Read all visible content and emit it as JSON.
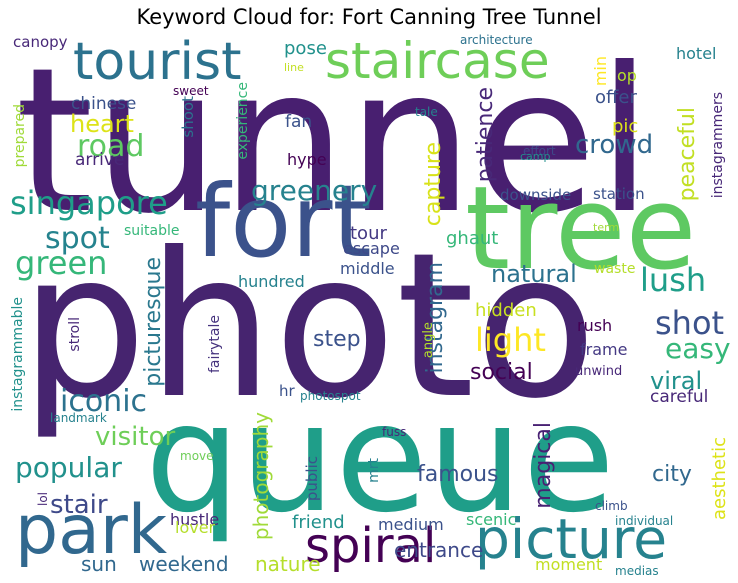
{
  "title": "Keyword Cloud for: Fort Canning Tree Tunnel",
  "palette": {
    "dark_purple": "#440154",
    "purple": "#482677",
    "indigo": "#3e4a89",
    "blue": "#31688e",
    "teal": "#26828e",
    "green_teal": "#1f9e89",
    "green": "#35b779",
    "light_green": "#6ece58",
    "yellow_green": "#b5de2b",
    "yellow": "#fde725"
  },
  "words": [
    {
      "text": "tunnel",
      "color": "#481f70"
    },
    {
      "text": "photo",
      "color": "#46246f"
    },
    {
      "text": "queue",
      "color": "#1f9e89"
    },
    {
      "text": "tree",
      "color": "#5ec962"
    },
    {
      "text": "fort",
      "color": "#3b528b"
    },
    {
      "text": "park",
      "color": "#31688e"
    },
    {
      "text": "picture",
      "color": "#26828e"
    },
    {
      "text": "spiral",
      "color": "#440154"
    },
    {
      "text": "staircase",
      "color": "#6ece58"
    },
    {
      "text": "tourist",
      "color": "#2c728e"
    },
    {
      "text": "singapore",
      "color": "#1f9e89"
    },
    {
      "text": "greenery",
      "color": "#26828e"
    },
    {
      "text": "green",
      "color": "#35b779"
    },
    {
      "text": "spot",
      "color": "#25838e"
    },
    {
      "text": "popular",
      "color": "#21918c"
    },
    {
      "text": "iconic",
      "color": "#2c728e"
    },
    {
      "text": "lush",
      "color": "#1f9e89"
    },
    {
      "text": "shot",
      "color": "#3b528b"
    },
    {
      "text": "light",
      "color": "#fde725"
    },
    {
      "text": "easy",
      "color": "#35b779"
    },
    {
      "text": "viral",
      "color": "#21918c"
    },
    {
      "text": "crowd",
      "color": "#31688e"
    },
    {
      "text": "road",
      "color": "#5ec962"
    },
    {
      "text": "heart",
      "color": "#dde318"
    },
    {
      "text": "natural",
      "color": "#2c728e"
    },
    {
      "text": "stair",
      "color": "#3e4989"
    },
    {
      "text": "famous",
      "color": "#3b528b"
    },
    {
      "text": "city",
      "color": "#31688e"
    },
    {
      "text": "visitor",
      "color": "#6ece58"
    },
    {
      "text": "social",
      "color": "#440154"
    },
    {
      "text": "step",
      "color": "#3b528b"
    },
    {
      "text": "picturesque",
      "color": "#2a788e"
    },
    {
      "text": "instagram",
      "color": "#31688e"
    },
    {
      "text": "patience",
      "color": "#482878"
    },
    {
      "text": "capture",
      "color": "#d8e219"
    },
    {
      "text": "peaceful",
      "color": "#c2df23"
    },
    {
      "text": "magical",
      "color": "#482173"
    },
    {
      "text": "photography",
      "color": "#a0da39"
    },
    {
      "text": "aesthetic",
      "color": "#dde318"
    },
    {
      "text": "entrance",
      "color": "#3e4989"
    },
    {
      "text": "weekend",
      "color": "#31688e"
    },
    {
      "text": "nature",
      "color": "#b5de2b"
    },
    {
      "text": "sun",
      "color": "#31688e"
    },
    {
      "text": "friend",
      "color": "#21918c"
    },
    {
      "text": "medium",
      "color": "#3b528b"
    },
    {
      "text": "scenic",
      "color": "#35b779"
    },
    {
      "text": "hustle",
      "color": "#482878"
    },
    {
      "text": "lover",
      "color": "#b5de2b"
    },
    {
      "text": "moment",
      "color": "#c2df23"
    },
    {
      "text": "hidden",
      "color": "#c8e020"
    },
    {
      "text": "rush",
      "color": "#440154"
    },
    {
      "text": "frame",
      "color": "#443983"
    },
    {
      "text": "careful",
      "color": "#482878"
    },
    {
      "text": "ghaut",
      "color": "#35b779"
    },
    {
      "text": "waste",
      "color": "#b5de2b"
    },
    {
      "text": "tour",
      "color": "#443983"
    },
    {
      "text": "escape",
      "color": "#3e4989"
    },
    {
      "text": "middle",
      "color": "#3b528b"
    },
    {
      "text": "hundred",
      "color": "#26828e"
    },
    {
      "text": "suitable",
      "color": "#35b779"
    },
    {
      "text": "downside",
      "color": "#3b528b"
    },
    {
      "text": "station",
      "color": "#3b528b"
    },
    {
      "text": "offer",
      "color": "#3b528b"
    },
    {
      "text": "pic",
      "color": "#dde318"
    },
    {
      "text": "pose",
      "color": "#21918c"
    },
    {
      "text": "min",
      "color": "#fde725"
    },
    {
      "text": "op",
      "color": "#b5de2b"
    },
    {
      "text": "hotel",
      "color": "#26828e"
    },
    {
      "text": "chinese",
      "color": "#3b528b"
    },
    {
      "text": "arrive",
      "color": "#482878"
    },
    {
      "text": "fan",
      "color": "#3b528b"
    },
    {
      "text": "hype",
      "color": "#440154"
    },
    {
      "text": "shoot",
      "color": "#2c728e"
    },
    {
      "text": "experience",
      "color": "#35b779"
    },
    {
      "text": "sweet",
      "color": "#440154"
    },
    {
      "text": "tale",
      "color": "#26828e"
    },
    {
      "text": "effort",
      "color": "#3e4989"
    },
    {
      "text": "camp",
      "color": "#21918c"
    },
    {
      "text": "term",
      "color": "#a0da39"
    },
    {
      "text": "canopy",
      "color": "#482878"
    },
    {
      "text": "architecture",
      "color": "#2c728e"
    },
    {
      "text": "line",
      "color": "#c2df23"
    },
    {
      "text": "prepared",
      "color": "#a0da39"
    },
    {
      "text": "instagrammers",
      "color": "#482878"
    },
    {
      "text": "instagrammable",
      "color": "#21918c"
    },
    {
      "text": "stroll",
      "color": "#482878"
    },
    {
      "text": "fairytale",
      "color": "#46337e"
    },
    {
      "text": "angle",
      "color": "#b5de2b"
    },
    {
      "text": "unwind",
      "color": "#482878"
    },
    {
      "text": "hr",
      "color": "#3b528b"
    },
    {
      "text": "photospot",
      "color": "#26828e"
    },
    {
      "text": "fuss",
      "color": "#482878"
    },
    {
      "text": "landmark",
      "color": "#26828e"
    },
    {
      "text": "move",
      "color": "#6ece58"
    },
    {
      "text": "public",
      "color": "#3b528b"
    },
    {
      "text": "mrt",
      "color": "#26828e"
    },
    {
      "text": "lol",
      "color": "#482878"
    },
    {
      "text": "climb",
      "color": "#3b528b"
    },
    {
      "text": "individual",
      "color": "#26828e"
    },
    {
      "text": "medias",
      "color": "#26828e"
    }
  ]
}
